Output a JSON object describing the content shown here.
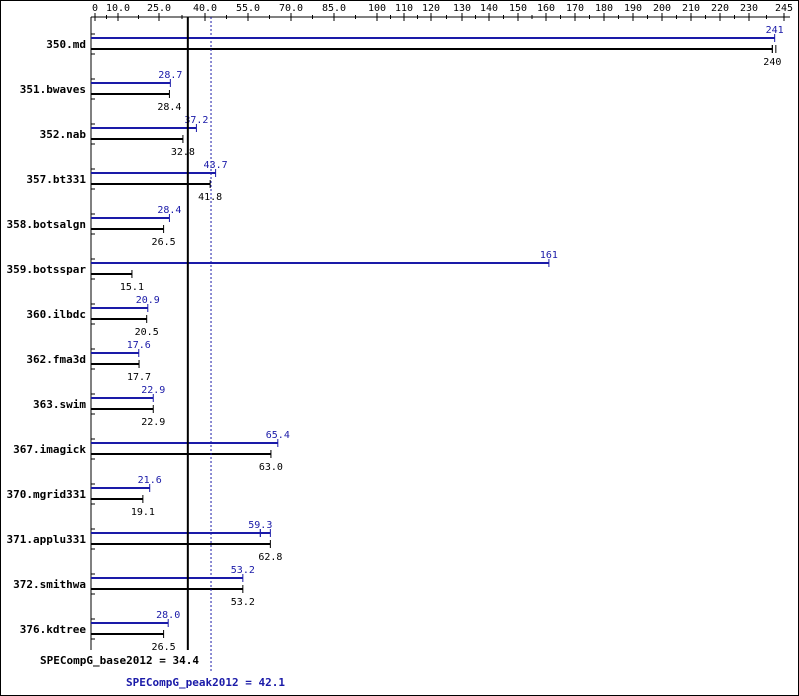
{
  "chart_data": {
    "type": "bar",
    "orientation": "horizontal",
    "axis_ticks": [
      "0",
      "10.0",
      "25.0",
      "40.0",
      "55.0",
      "70.0",
      "85.0",
      "100",
      "110",
      "120",
      "130",
      "140",
      "150",
      "160",
      "170",
      "180",
      "190",
      "200",
      "210",
      "220",
      "230",
      "245"
    ],
    "axis_tick_values": [
      0,
      10,
      25,
      40,
      55,
      70,
      85,
      100,
      110,
      120,
      130,
      140,
      150,
      160,
      170,
      180,
      190,
      200,
      210,
      220,
      230,
      245
    ],
    "categories": [
      "350.md",
      "351.bwaves",
      "352.nab",
      "357.bt331",
      "358.botsalgn",
      "359.botsspar",
      "360.ilbdc",
      "362.fma3d",
      "363.swim",
      "367.imagick",
      "370.mgrid331",
      "371.applu331",
      "372.smithwa",
      "376.kdtree"
    ],
    "series": [
      {
        "name": "peak",
        "color": "#1a1aa8",
        "values": [
          241,
          28.7,
          37.2,
          43.7,
          28.4,
          161,
          20.9,
          17.6,
          22.9,
          65.4,
          21.6,
          59.3,
          53.2,
          28.0
        ],
        "labels": [
          "241",
          "28.7",
          "37.2",
          "43.7",
          "28.4",
          "161",
          "20.9",
          "17.6",
          "22.9",
          "65.4",
          "21.6",
          "59.3",
          "53.2",
          "28.0"
        ]
      },
      {
        "name": "base",
        "color": "#000000",
        "values": [
          240,
          28.4,
          32.8,
          41.8,
          26.5,
          15.1,
          20.5,
          17.7,
          22.9,
          63.0,
          19.1,
          62.8,
          53.2,
          26.5
        ],
        "labels": [
          "240",
          "28.4",
          "32.8",
          "41.8",
          "26.5",
          "15.1",
          "20.5",
          "17.7",
          "22.9",
          "63.0",
          "19.1",
          "62.8",
          "53.2",
          "26.5"
        ]
      }
    ],
    "run_spread": [
      {
        "category": "350.md",
        "series": "base",
        "min": 240,
        "max": 241.5
      },
      {
        "category": "371.applu331",
        "series": "peak",
        "min": 59.3,
        "max": 62.8
      }
    ],
    "summary": {
      "base_label": "SPECompG_base2012 = 34.4",
      "base_value": 34.4,
      "peak_label": "SPECompG_peak2012 = 42.1",
      "peak_value": 42.1
    },
    "xlim": [
      0,
      245
    ],
    "title": "",
    "xlabel": "",
    "ylabel": "",
    "grid": false,
    "legend": "none"
  }
}
